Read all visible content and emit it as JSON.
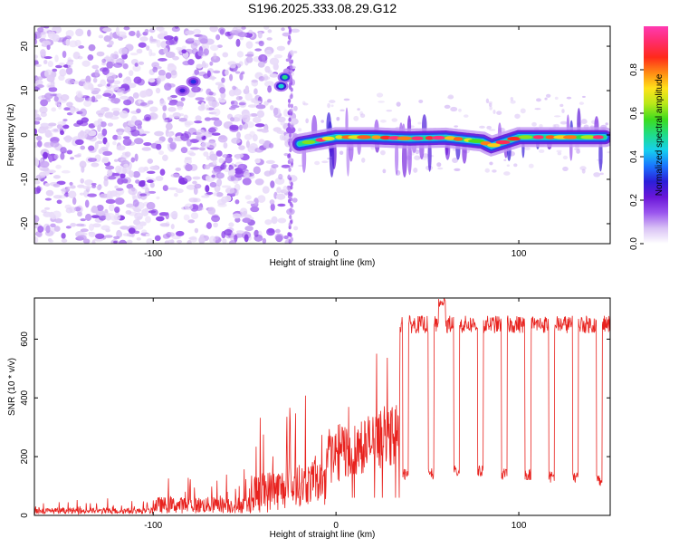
{
  "title": "S196.2025.333.08.29.G12",
  "colors": {
    "snr_line": "#e8221e",
    "background": "#ffffff",
    "axes": "#000000",
    "colormap": [
      "#ffffff",
      "#d9c2f5",
      "#9a55ee",
      "#6a16d8",
      "#2b1fd9",
      "#1a74ff",
      "#16cfee",
      "#1fdc8a",
      "#3ddc1e",
      "#b8e81a",
      "#ffe21a",
      "#ff8a14",
      "#ff2a1a",
      "#ff2c6a",
      "#ff3ab2"
    ]
  },
  "chart_data": [
    {
      "type": "heatmap",
      "title": "S196.2025.333.08.29.G12",
      "xlabel": "Height of straight line (km)",
      "ylabel": "Frequency (Hz)",
      "xlim": [
        -165,
        150
      ],
      "ylim": [
        -24.5,
        24.5
      ],
      "xticks": [
        -100,
        0,
        100
      ],
      "yticks": [
        -20,
        -10,
        0,
        10,
        20
      ],
      "value_description": "Normalized spectral amplitude (0-1)",
      "ridge": {
        "description": "Main spectral ridge near 0 Hz from ~-20 km to ~147 km",
        "x": [
          -20,
          0,
          20,
          40,
          60,
          80,
          85,
          100,
          120,
          147
        ],
        "y": [
          -2,
          -0.5,
          -0.5,
          -0.8,
          -0.6,
          -1.5,
          -2.5,
          -0.5,
          -0.5,
          -0.5
        ],
        "peak_amplitude": 0.95
      },
      "blobs_above_ridge": [
        {
          "x": -78,
          "y": 12,
          "amplitude": 0.3
        },
        {
          "x": -84,
          "y": 10,
          "amplitude": 0.25
        },
        {
          "x": -30,
          "y": 11,
          "amplitude": 0.45
        },
        {
          "x": -28,
          "y": 13,
          "amplitude": 0.5
        }
      ],
      "colorbar": {
        "label": "Normalized spectral amplitude",
        "range": [
          0,
          1
        ],
        "ticks": [
          0.0,
          0.2,
          0.4,
          0.6,
          0.8
        ]
      }
    },
    {
      "type": "line",
      "xlabel": "Height of straight line (km)",
      "ylabel": "SNR (10 * v/v)",
      "xlim": [
        -165,
        150
      ],
      "ylim": [
        0,
        740
      ],
      "xticks": [
        -100,
        0,
        100
      ],
      "yticks": [
        0,
        200,
        400,
        600
      ],
      "series": [
        {
          "name": "SNR",
          "description": "Noisy SNR trace: low (~20) until -45 km, rising through bursts between -45 and 35 km, then high plateau (~620-700) with periodic dips to ~110-140",
          "segments": [
            {
              "x_range": [
                -165,
                -100
              ],
              "base": 15,
              "noise": 25
            },
            {
              "x_range": [
                -100,
                -45
              ],
              "base": 35,
              "noise": 70
            },
            {
              "x_range": [
                -45,
                -5
              ],
              "base": 120,
              "noise": 180
            },
            {
              "x_range": [
                -5,
                35
              ],
              "base": 200,
              "noise": 250
            },
            {
              "x_range": [
                35,
                150
              ],
              "base": 650,
              "noise": 60
            }
          ],
          "dips": [
            {
              "x": 38,
              "y": 120
            },
            {
              "x": 52,
              "y": 120
            },
            {
              "x": 66,
              "y": 130
            },
            {
              "x": 79,
              "y": 130
            },
            {
              "x": 92,
              "y": 120
            },
            {
              "x": 105,
              "y": 120
            },
            {
              "x": 118,
              "y": 110
            },
            {
              "x": 131,
              "y": 110
            },
            {
              "x": 144,
              "y": 100
            }
          ],
          "peak": {
            "x": 58,
            "y": 740
          }
        }
      ]
    }
  ]
}
